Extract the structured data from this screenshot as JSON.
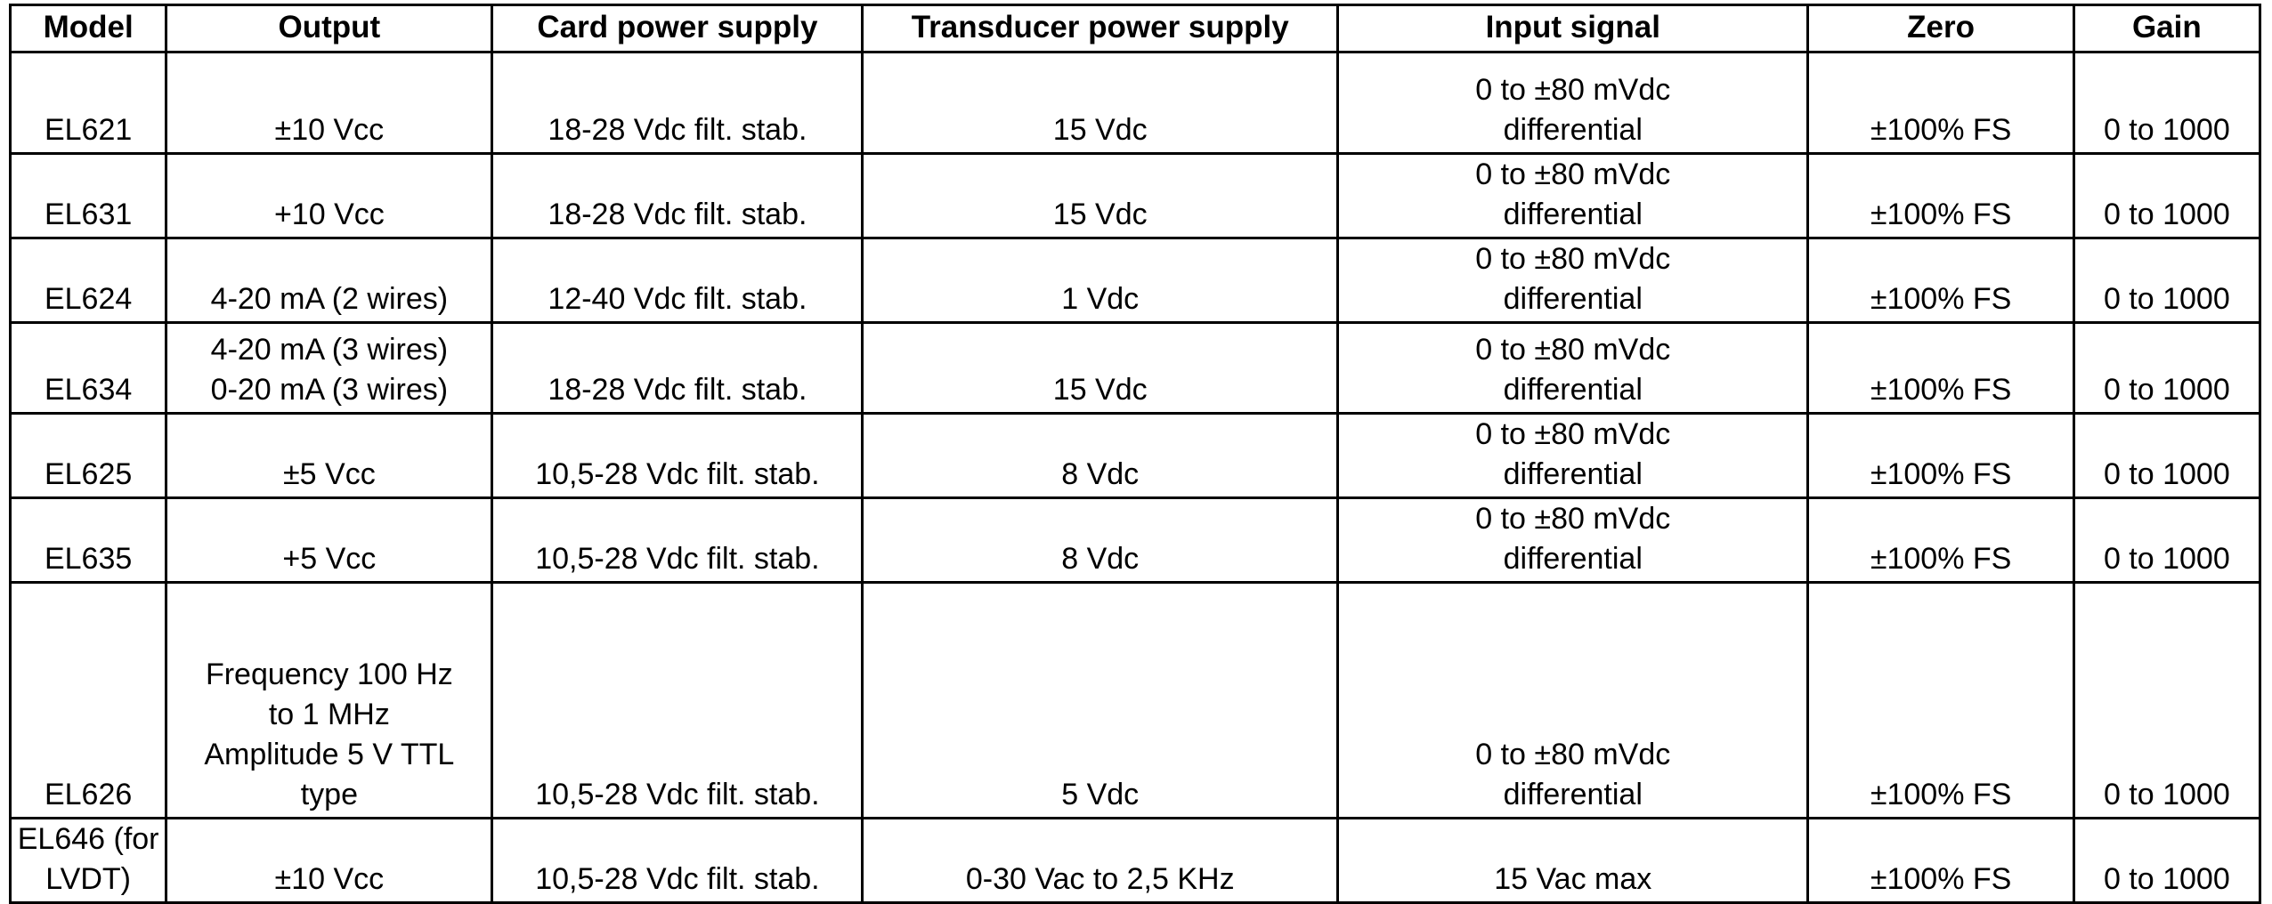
{
  "table": {
    "headers": [
      "Model",
      "Output",
      "Card power supply",
      "Transducer power supply",
      "Input signal",
      "Zero",
      "Gain"
    ],
    "rows": [
      [
        "EL621",
        "±10 Vcc",
        "18-28 Vdc filt. stab.",
        "15 Vdc",
        "0 to ±80 mVdc\ndifferential",
        "±100% FS",
        "0 to 1000"
      ],
      [
        "EL631",
        "+10 Vcc",
        "18-28 Vdc filt. stab.",
        "15 Vdc",
        "0 to ±80 mVdc\ndifferential",
        "±100% FS",
        "0 to 1000"
      ],
      [
        "EL624",
        "4-20 mA (2 wires)",
        "12-40 Vdc filt. stab.",
        "1 Vdc",
        "0 to ±80 mVdc\ndifferential",
        "±100% FS",
        "0 to 1000"
      ],
      [
        "EL634",
        "4-20 mA (3 wires)\n0-20 mA (3 wires)",
        "18-28 Vdc filt. stab.",
        "15 Vdc",
        "0 to ±80 mVdc\ndifferential",
        "±100% FS",
        "0 to 1000"
      ],
      [
        "EL625",
        "±5 Vcc",
        "10,5-28 Vdc filt. stab.",
        "8 Vdc",
        "0 to ±80 mVdc\ndifferential",
        "±100% FS",
        "0 to 1000"
      ],
      [
        "EL635",
        "+5 Vcc",
        "10,5-28 Vdc filt. stab.",
        "8 Vdc",
        "0 to ±80 mVdc\ndifferential",
        "±100% FS",
        "0 to 1000"
      ],
      [
        "EL626",
        "Frequency 100 Hz\nto 1 MHz\nAmplitude 5 V TTL\ntype",
        "10,5-28 Vdc filt. stab.",
        "5 Vdc",
        "0 to ±80 mVdc\ndifferential",
        "±100% FS",
        "0 to 1000"
      ],
      [
        "EL646 (for\nLVDT)",
        "±10 Vcc",
        "10,5-28 Vdc filt. stab.",
        "0-30 Vac to 2,5 KHz",
        "15 Vac max",
        "±100% FS",
        "0 to 1000"
      ]
    ]
  }
}
